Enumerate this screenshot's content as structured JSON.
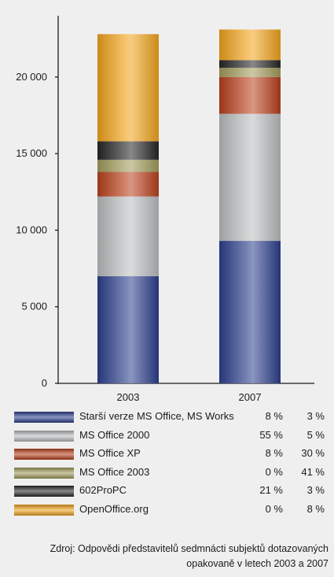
{
  "chart_data": {
    "type": "bar",
    "stacked": true,
    "categories": [
      "2003",
      "2007"
    ],
    "ylim": [
      0,
      24000
    ],
    "yticks": [
      0,
      5000,
      10000,
      15000,
      20000
    ],
    "ytick_labels": [
      "0",
      "5 000",
      "10 000",
      "15 000",
      "20 000"
    ],
    "series": [
      {
        "name": "Starší verze MS Office, MS Works",
        "values": [
          7000,
          9300
        ],
        "pct": [
          "8 %",
          "3 %"
        ],
        "color": "#2c3e8c"
      },
      {
        "name": "MS Office 2000",
        "values": [
          5200,
          8300
        ],
        "pct": [
          "55 %",
          "5 %"
        ],
        "color": "#b9bcbd"
      },
      {
        "name": "MS Office XP",
        "values": [
          1600,
          2400
        ],
        "pct": [
          "8 %",
          "30 %"
        ],
        "color": "#b8401c"
      },
      {
        "name": "MS Office 2003",
        "values": [
          800,
          600
        ],
        "pct": [
          "0 %",
          "41 %"
        ],
        "color": "#a09a5a"
      },
      {
        "name": "602ProPC",
        "values": [
          1200,
          500
        ],
        "pct": [
          "21 %",
          "3 %"
        ],
        "color": "#262626"
      },
      {
        "name": "OpenOffice.org",
        "values": [
          7000,
          2000
        ],
        "pct": [
          "0 %",
          "8 %"
        ],
        "color": "#f0a21c"
      }
    ]
  },
  "source": {
    "line1": "Zdroj: Odpovědi představitelů sedmnácti subjektů dotazovaných",
    "line2": "opakovaně v letech 2003 a 2007"
  }
}
